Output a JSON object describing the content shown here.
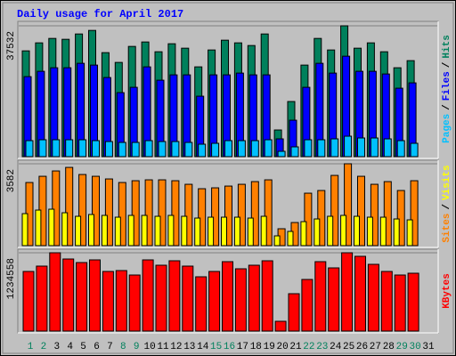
{
  "chart_data": [
    {
      "type": "bar",
      "title": "Daily usage for April 2017",
      "legend_separator": "/",
      "ylim": [
        0,
        37532
      ],
      "yticks": [
        37532
      ],
      "series": [
        {
          "name": "Pages",
          "color": "#00c0ff",
          "values": [
            4590,
            4845,
            4845,
            4845,
            4845,
            4590,
            4335,
            4080,
            4080,
            4590,
            4335,
            4335,
            4080,
            3570,
            3825,
            4590,
            4590,
            4590,
            4845,
            1530,
            2805,
            4845,
            4845,
            5100,
            5865,
            5355,
            5355,
            5100,
            4590,
            3825,
            null
          ]
        },
        {
          "name": "Files",
          "color": "#0000ff",
          "values": [
            22950,
            24480,
            25500,
            25500,
            26775,
            26265,
            22695,
            18360,
            19890,
            25755,
            21930,
            23460,
            23460,
            17340,
            23460,
            23460,
            23970,
            23460,
            23460,
            5100,
            10455,
            19890,
            26775,
            23970,
            28815,
            24480,
            24480,
            23715,
            19635,
            21165,
            null
          ]
        },
        {
          "name": "Hits",
          "color": "#00805c",
          "values": [
            30345,
            32640,
            33915,
            33660,
            35190,
            36210,
            29835,
            27030,
            31620,
            32895,
            30090,
            32385,
            31110,
            25755,
            30600,
            33405,
            32640,
            31875,
            35190,
            7650,
            15810,
            26265,
            33915,
            30600,
            37532,
            31110,
            32640,
            30090,
            25500,
            27540,
            null
          ]
        }
      ]
    },
    {
      "type": "bar",
      "legend_separator": "/",
      "ylim": [
        0,
        3582
      ],
      "yticks": [
        3582
      ],
      "series": [
        {
          "name": "Sites",
          "color": "#ff8000",
          "values": [
            2762,
            3034,
            3268,
            3423,
            3112,
            3034,
            2918,
            2762,
            2840,
            2879,
            2879,
            2840,
            2684,
            2490,
            2529,
            2606,
            2684,
            2801,
            2879,
            739,
            1011,
            2295,
            2412,
            3073,
            3582,
            3034,
            2684,
            2801,
            2412,
            2840,
            null
          ]
        },
        {
          "name": "Visits",
          "color": "#ffff00",
          "values": [
            1400,
            1556,
            1595,
            1439,
            1284,
            1362,
            1323,
            1245,
            1323,
            1323,
            1284,
            1323,
            1284,
            1206,
            1245,
            1245,
            1245,
            1206,
            1284,
            428,
            622,
            1050,
            1167,
            1284,
            1323,
            1284,
            1245,
            1245,
            1167,
            1128,
            null
          ]
        }
      ]
    },
    {
      "type": "bar",
      "ylim": [
        0,
        1234558
      ],
      "yticks": [
        1234558
      ],
      "categories": [
        "1",
        "2",
        "3",
        "4",
        "5",
        "6",
        "7",
        "8",
        "9",
        "10",
        "11",
        "12",
        "13",
        "14",
        "15",
        "16",
        "17",
        "18",
        "19",
        "20",
        "21",
        "22",
        "23",
        "24",
        "25",
        "26",
        "27",
        "28",
        "29",
        "30",
        "31"
      ],
      "category_colors": [
        "#00805c",
        "#00805c",
        "#000000",
        "#000000",
        "#000000",
        "#000000",
        "#000000",
        "#00805c",
        "#00805c",
        "#000000",
        "#000000",
        "#000000",
        "#000000",
        "#000000",
        "#00805c",
        "#00805c",
        "#000000",
        "#000000",
        "#000000",
        "#000000",
        "#000000",
        "#00805c",
        "#00805c",
        "#000000",
        "#000000",
        "#000000",
        "#000000",
        "#000000",
        "#00805c",
        "#00805c",
        "#000000"
      ],
      "series": [
        {
          "name": "KBytes",
          "color": "#ff0000",
          "values": [
            939943,
            1024117,
            1234558,
            1136349,
            1080233,
            1122320,
            939943,
            953972,
            883827,
            1122320,
            1038146,
            1108291,
            1024117,
            855769,
            939943,
            1094262,
            982030,
            1038146,
            1108291,
            154319,
            589218,
            813682,
            1094262,
            996059,
            1234558,
            1178436,
            1052175,
            939943,
            883827,
            911885,
            null
          ]
        }
      ]
    }
  ]
}
